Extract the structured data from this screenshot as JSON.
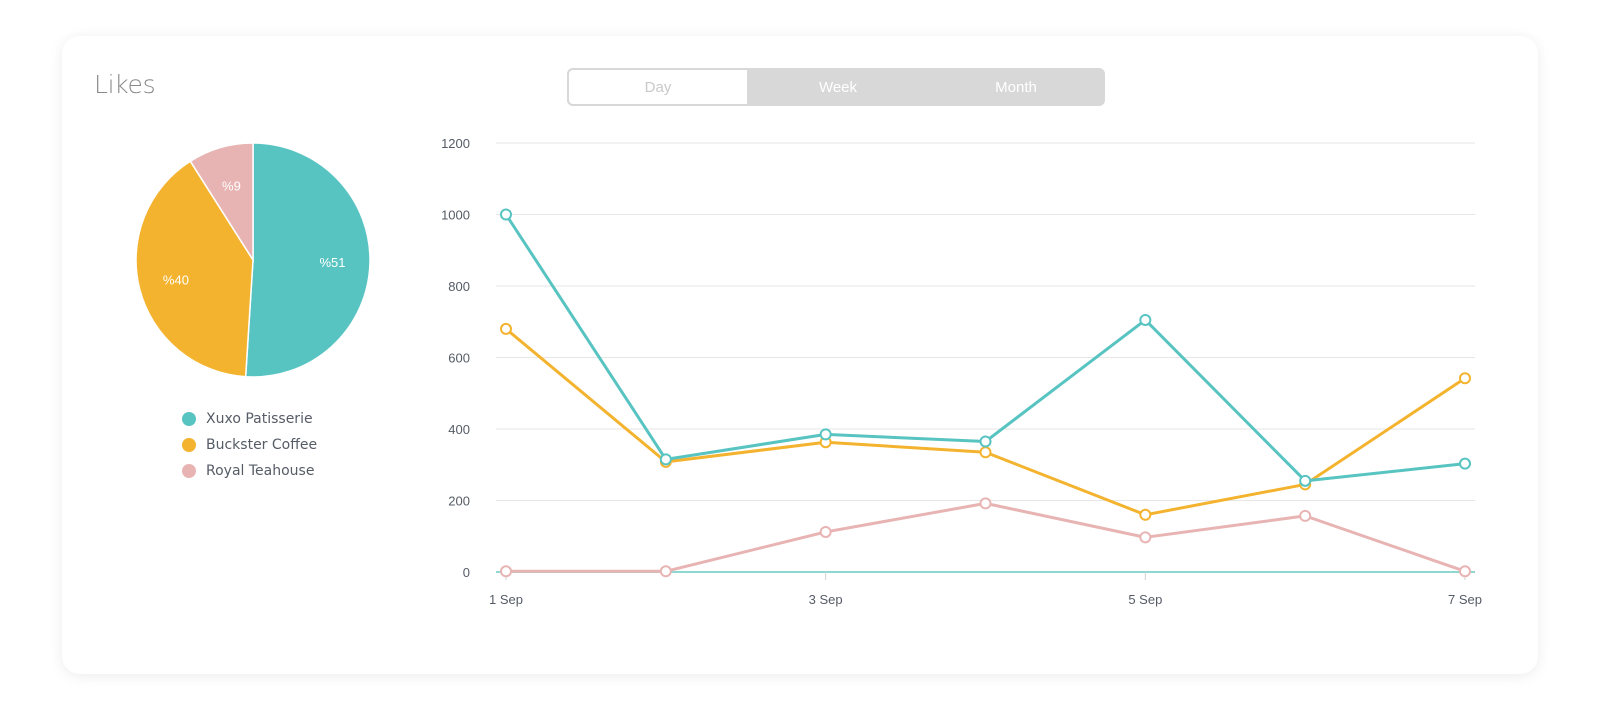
{
  "card": {
    "title": "Likes"
  },
  "tabs": [
    {
      "label": "Day",
      "active": true
    },
    {
      "label": "Week",
      "active": false
    },
    {
      "label": "Month",
      "active": false
    }
  ],
  "colors": {
    "xuxo": "#58c4c2",
    "buckster": "#f4b32e",
    "royal": "#e8b4b3",
    "grid": "#e6e6e6",
    "baseline": "#8fd8d2"
  },
  "chart_data": [
    {
      "type": "pie",
      "title": "",
      "slices": [
        {
          "name": "Xuxo Patisserie",
          "value": 51,
          "label": "%51",
          "color": "#58c4c2"
        },
        {
          "name": "Buckster Coffee",
          "value": 40,
          "label": "%40",
          "color": "#f4b32e"
        },
        {
          "name": "Royal Teahouse",
          "value": 9,
          "label": "%9",
          "color": "#e8b4b3"
        }
      ],
      "legend": "bottom"
    },
    {
      "type": "line",
      "title": "",
      "xlabel": "",
      "ylabel": "",
      "x": [
        1,
        2,
        3,
        4,
        5,
        6,
        7
      ],
      "x_tick_labels": [
        {
          "x": 1,
          "label": "1 Sep"
        },
        {
          "x": 3,
          "label": "3 Sep"
        },
        {
          "x": 5,
          "label": "5 Sep"
        },
        {
          "x": 7,
          "label": "7 Sep"
        }
      ],
      "ylim": [
        0,
        1200
      ],
      "y_ticks": [
        0,
        200,
        400,
        600,
        800,
        1000,
        1200
      ],
      "grid": true,
      "series": [
        {
          "name": "Xuxo Patisserie",
          "color": "#58c4c2",
          "values": [
            1000,
            315,
            385,
            365,
            705,
            255,
            303
          ]
        },
        {
          "name": "Buckster Coffee",
          "color": "#f4b32e",
          "values": [
            680,
            308,
            363,
            335,
            160,
            245,
            542
          ]
        },
        {
          "name": "Royal Teahouse",
          "color": "#e8b4b3",
          "values": [
            2,
            2,
            112,
            192,
            97,
            157,
            2
          ]
        }
      ]
    }
  ]
}
